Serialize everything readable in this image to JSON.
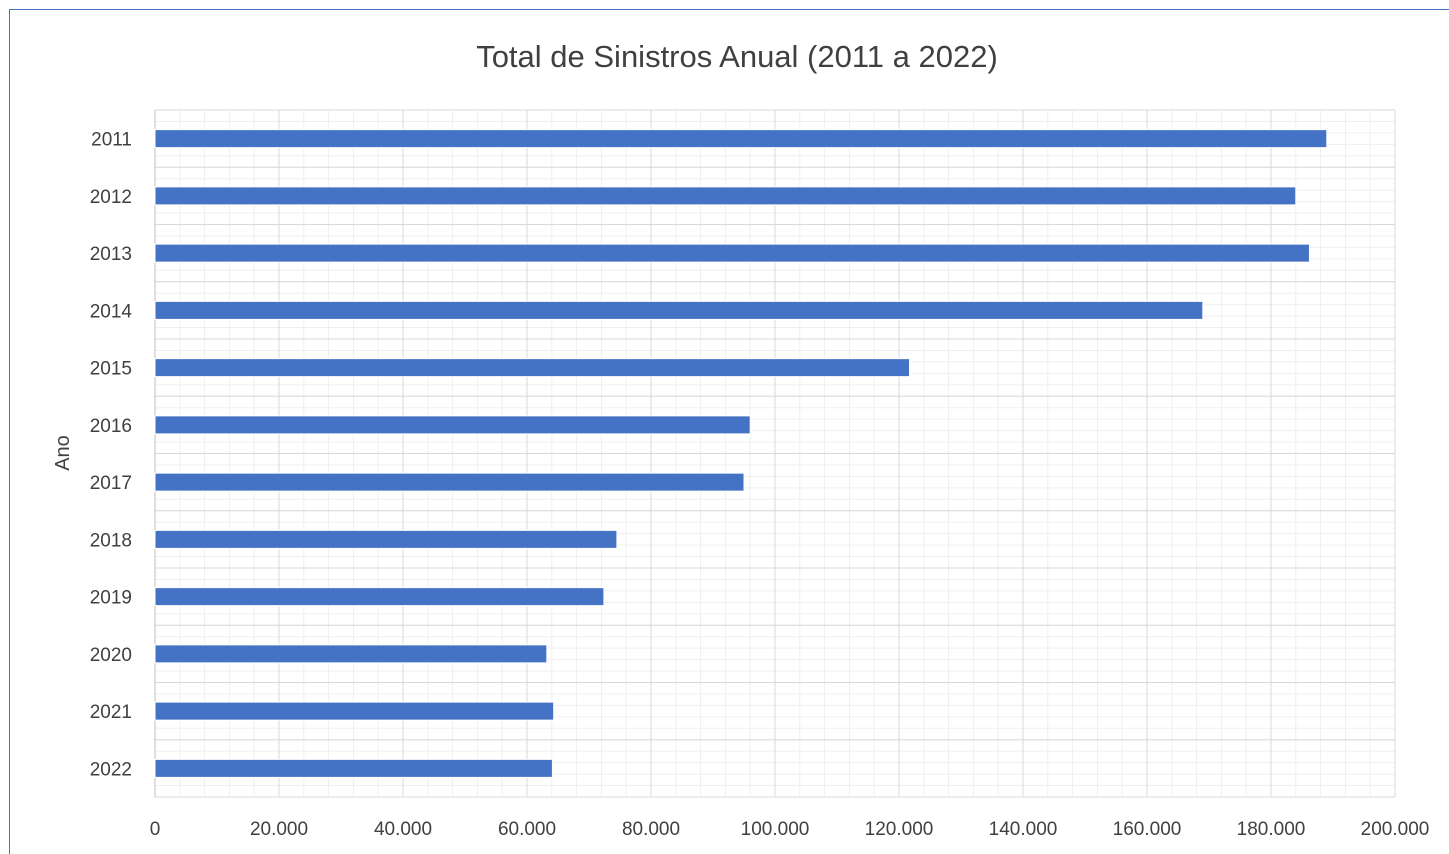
{
  "chart_data": {
    "type": "bar",
    "orientation": "horizontal",
    "title": "Total de Sinistros Anual (2011 a 2022)",
    "xlabel": "",
    "ylabel": "Ano",
    "categories": [
      "2011",
      "2012",
      "2013",
      "2014",
      "2015",
      "2016",
      "2017",
      "2018",
      "2019",
      "2020",
      "2021",
      "2022"
    ],
    "values": [
      189000,
      184000,
      186200,
      169000,
      121700,
      96000,
      95000,
      74500,
      72400,
      63200,
      64300,
      64100
    ],
    "xlim": [
      0,
      200000
    ],
    "x_ticks": [
      "0",
      "20.000",
      "40.000",
      "60.000",
      "80.000",
      "100.000",
      "120.000",
      "140.000",
      "160.000",
      "180.000",
      "200.000"
    ],
    "grid": "major-and-minor",
    "legend": "none",
    "colors": {
      "bar": "#4472C4",
      "grid_major": "#D9D9D9",
      "grid_minor": "#EFEFEF",
      "frame": "#4472C4",
      "text": "#404040"
    }
  }
}
